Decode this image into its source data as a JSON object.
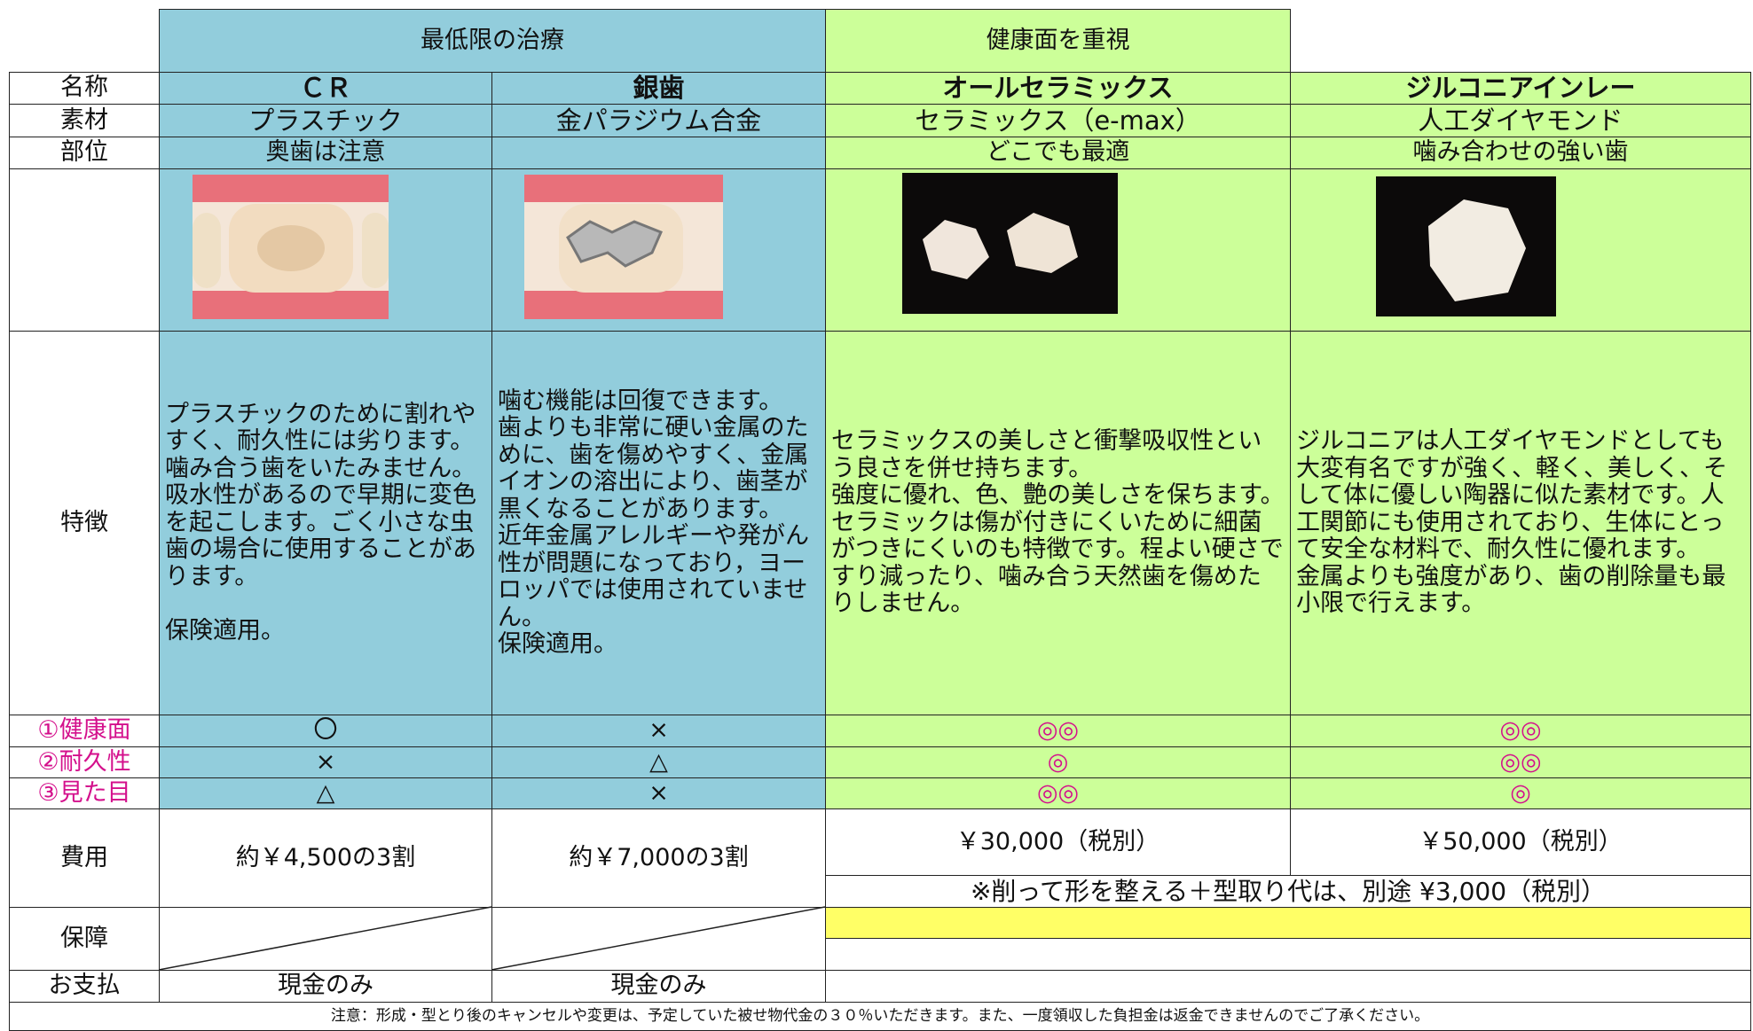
{
  "header_groups": [
    "最低限の治療",
    "健康面を重視"
  ],
  "row_labels": {
    "name": "名称",
    "material": "素材",
    "site": "部位",
    "features": "特徴",
    "health": "①健康面",
    "durability": "②耐久性",
    "looks": "③見た目",
    "cost": "費用",
    "guarantee": "保障",
    "payment": "お支払"
  },
  "columns": [
    {
      "name": "ＣＲ",
      "material": "プラスチック",
      "site": "奥歯は注意",
      "features": "プラスチックのために割れやすく、耐久性には劣ります。\n噛み合う歯をいたみません。吸水性があるので早期に変色を起こします。ごく小さな虫歯の場合に使用することがあります。\n\n保険適用。",
      "health": "〇",
      "durability": "×",
      "looks": "△",
      "cost": "約￥4,500の3割",
      "payment": "現金のみ"
    },
    {
      "name": "銀歯",
      "material": "金パラジウム合金",
      "features": "噛む機能は回復できます。\n歯よりも非常に硬い金属のために、歯を傷めやすく、金属イオンの溶出により、歯茎が黒くなることがあります。\n近年金属アレルギーや発がん性が問題になっており，ヨーロッパでは使用されていません。\n保険適用。",
      "health": "×",
      "durability": "△",
      "looks": "×",
      "cost": "約￥7,000の3割",
      "payment": "現金のみ"
    },
    {
      "name": "オールセラミックス",
      "material": "セラミックス（e-max）",
      "site": "どこでも最適",
      "features": "セラミックスの美しさと衝撃吸収性という良さを併せ持ちます。\n強度に優れ、色、艶の美しさを保ちます。セラミックは傷が付きにくいために細菌がつきにくいのも特徴です。程よい硬さですり減ったり、噛み合う天然歯を傷めたりしません。",
      "health": "◎◎",
      "durability": "◎",
      "looks": "◎◎",
      "cost": "￥30,000（税別）"
    },
    {
      "name": "ジルコニアインレー",
      "material": "人工ダイヤモンド",
      "site": "噛み合わせの強い歯",
      "features": "ジルコニアは人工ダイヤモンドとしても大変有名ですが強く、軽く、美しく、そして体に優しい陶器に似た素材です。人工関節にも使用されており、生体にとって安全な材料で、耐久性に優れます。\n金属よりも強度があり、歯の削除量も最小限で行えます。",
      "health": "◎◎",
      "durability": "◎◎",
      "looks": "◎",
      "cost": "￥50,000（税別）"
    }
  ],
  "extra_cost_note": "※削って形を整える＋型取り代は、別途 ¥3,000（税別）",
  "footer": "注意：形成・型とり後のキャンセルや変更は、予定していた被せ物代金の３０％いただきます。また、一度領収した負担金は返金できませんのでご了承ください。"
}
